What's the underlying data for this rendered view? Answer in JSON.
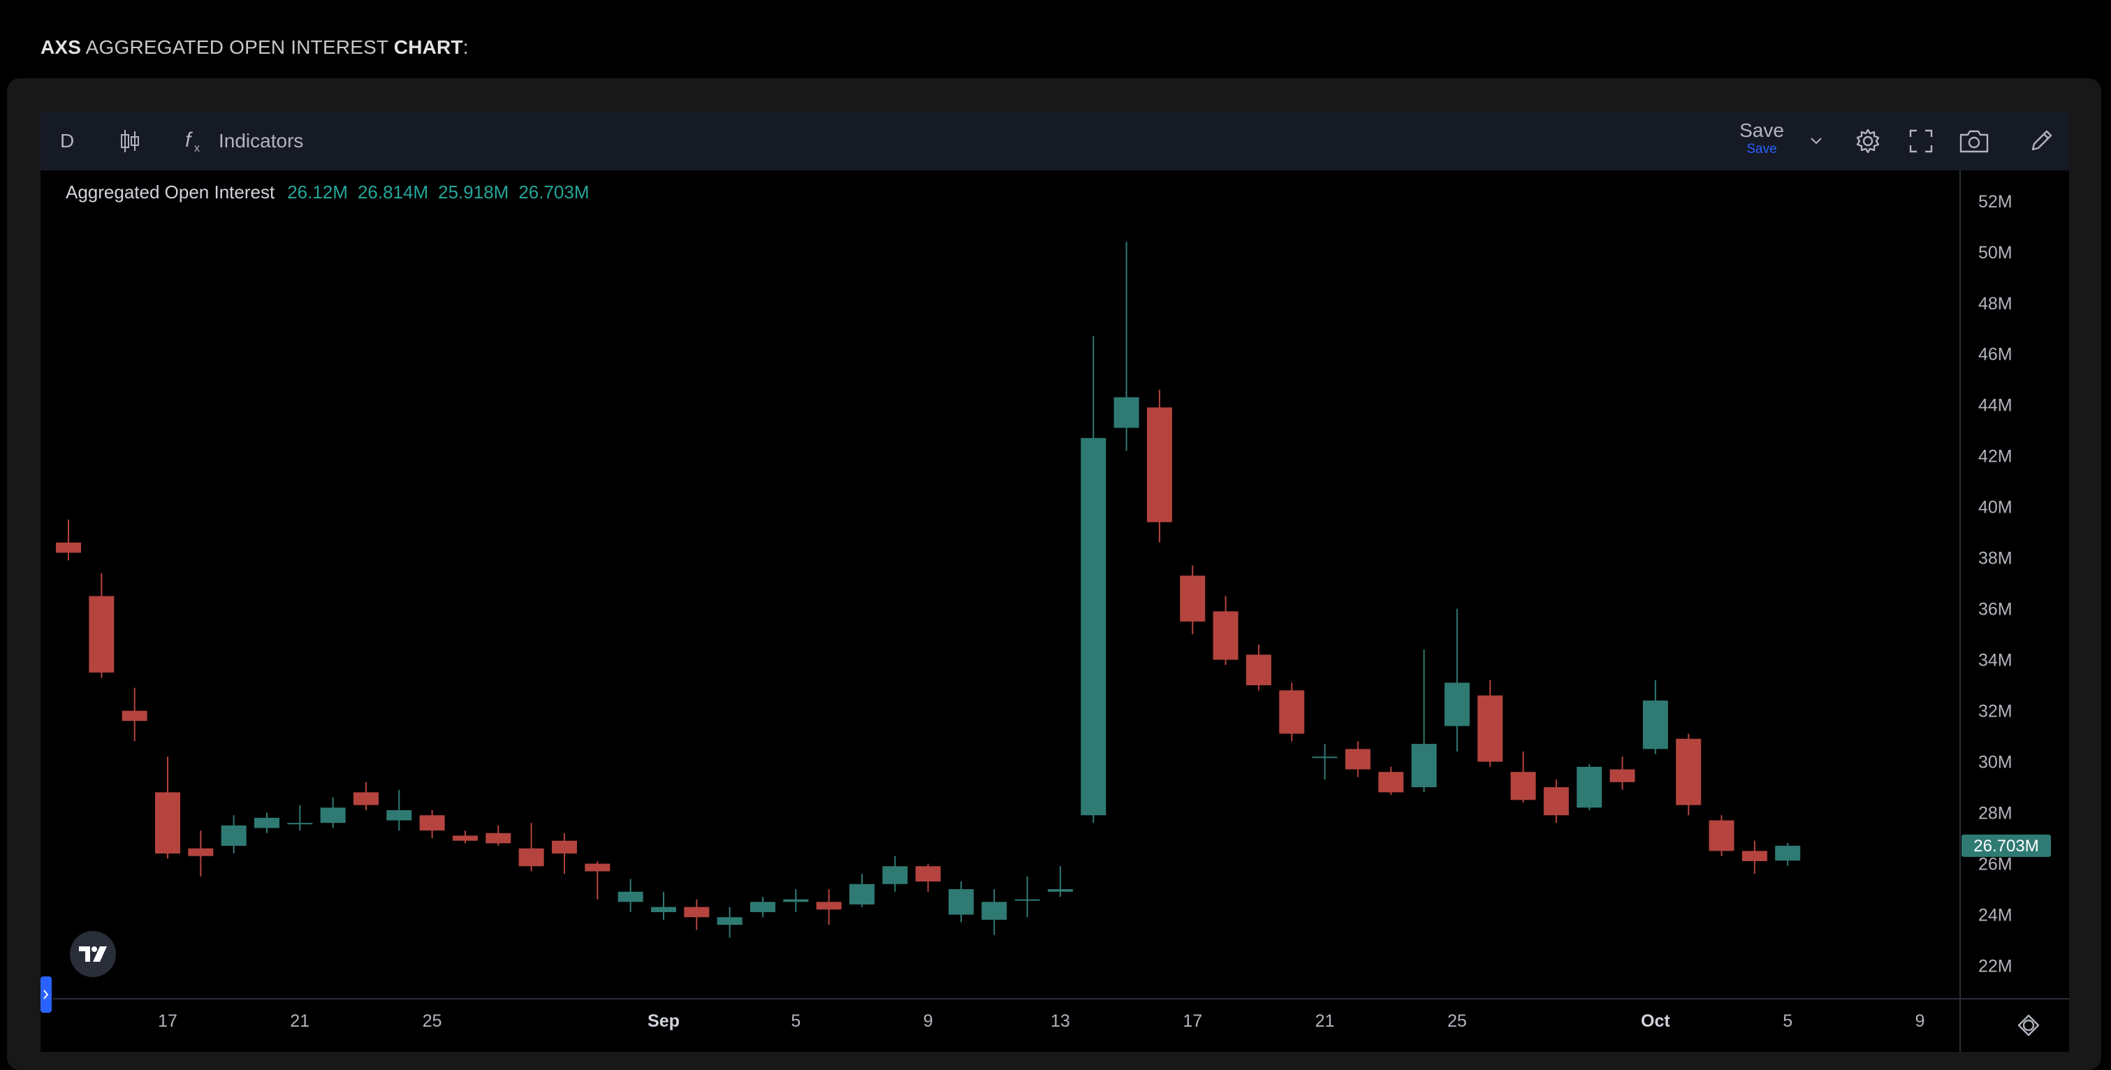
{
  "page_title": {
    "ticker": "AXS",
    "middle": " AGGREGATED OPEN INTEREST ",
    "chart_word": "CHART",
    "suffix": ":"
  },
  "toolbar": {
    "interval": "D",
    "indicators_label": "Indicators",
    "save_label": "Save",
    "save_sub_label": "Save",
    "icons": [
      "candles-icon",
      "function-icon",
      "chevron-down-icon",
      "gear-icon",
      "fullscreen-icon",
      "camera-icon",
      "draw-icon"
    ]
  },
  "legend": {
    "label": "Aggregated Open Interest",
    "open": "26.12M",
    "high": "26.814M",
    "low": "25.918M",
    "close": "26.703M"
  },
  "colors": {
    "up": "#26a69a",
    "up_body": "#2f7b74",
    "down": "#b5443f",
    "background": "#000000",
    "toolbar": "#161a25",
    "axis_text": "#b2b5be"
  },
  "chart_data": {
    "type": "candlestick",
    "title": "Aggregated Open Interest",
    "unit": "M",
    "ylim": [
      20.7,
      53.2
    ],
    "y_ticks": [
      "52M",
      "50M",
      "48M",
      "46M",
      "44M",
      "42M",
      "40M",
      "38M",
      "36M",
      "34M",
      "32M",
      "30M",
      "28M",
      "26M",
      "24M",
      "22M"
    ],
    "y_tick_values": [
      52,
      50,
      48,
      46,
      44,
      42,
      40,
      38,
      36,
      34,
      32,
      30,
      28,
      26,
      24,
      22
    ],
    "x_tick_labels": [
      "17",
      "21",
      "25",
      "Sep",
      "5",
      "9",
      "13",
      "17",
      "21",
      "25",
      "Oct",
      "5",
      "9"
    ],
    "x_tick_dates": [
      "Aug 17",
      "Aug 21",
      "Aug 25",
      "Sep 1",
      "Sep 5",
      "Sep 9",
      "Sep 13",
      "Sep 17",
      "Sep 21",
      "Sep 25",
      "Oct 1",
      "Oct 5",
      "Oct 9"
    ],
    "last_value_label": "26.703M",
    "last_value": 26.703,
    "candles": [
      {
        "date": "Aug 14",
        "o": 38.6,
        "h": 39.5,
        "l": 37.9,
        "c": 38.2
      },
      {
        "date": "Aug 15",
        "o": 36.5,
        "h": 37.4,
        "l": 33.3,
        "c": 33.5
      },
      {
        "date": "Aug 16",
        "o": 32.0,
        "h": 32.9,
        "l": 30.8,
        "c": 31.6
      },
      {
        "date": "Aug 17",
        "o": 28.8,
        "h": 30.2,
        "l": 26.2,
        "c": 26.4
      },
      {
        "date": "Aug 18",
        "o": 26.6,
        "h": 27.3,
        "l": 25.5,
        "c": 26.3
      },
      {
        "date": "Aug 19",
        "o": 26.7,
        "h": 27.9,
        "l": 26.4,
        "c": 27.5
      },
      {
        "date": "Aug 20",
        "o": 27.4,
        "h": 28.0,
        "l": 27.2,
        "c": 27.8
      },
      {
        "date": "Aug 21",
        "o": 27.6,
        "h": 28.3,
        "l": 27.3,
        "c": 27.6
      },
      {
        "date": "Aug 22",
        "o": 27.6,
        "h": 28.6,
        "l": 27.4,
        "c": 28.2
      },
      {
        "date": "Aug 23",
        "o": 28.8,
        "h": 29.2,
        "l": 28.1,
        "c": 28.3
      },
      {
        "date": "Aug 24",
        "o": 27.7,
        "h": 28.9,
        "l": 27.3,
        "c": 28.1
      },
      {
        "date": "Aug 25",
        "o": 27.9,
        "h": 28.1,
        "l": 27.0,
        "c": 27.3
      },
      {
        "date": "Aug 26",
        "o": 27.1,
        "h": 27.3,
        "l": 26.8,
        "c": 26.9
      },
      {
        "date": "Aug 27",
        "o": 27.2,
        "h": 27.5,
        "l": 26.7,
        "c": 26.8
      },
      {
        "date": "Aug 28",
        "o": 26.6,
        "h": 27.6,
        "l": 25.7,
        "c": 25.9
      },
      {
        "date": "Aug 29",
        "o": 26.9,
        "h": 27.2,
        "l": 25.6,
        "c": 26.4
      },
      {
        "date": "Aug 30",
        "o": 26.0,
        "h": 26.1,
        "l": 24.6,
        "c": 25.7
      },
      {
        "date": "Aug 31",
        "o": 24.5,
        "h": 25.4,
        "l": 24.1,
        "c": 24.9
      },
      {
        "date": "Sep 1",
        "o": 24.1,
        "h": 24.9,
        "l": 23.8,
        "c": 24.3
      },
      {
        "date": "Sep 2",
        "o": 24.3,
        "h": 24.6,
        "l": 23.4,
        "c": 23.9
      },
      {
        "date": "Sep 3",
        "o": 23.6,
        "h": 24.3,
        "l": 23.1,
        "c": 23.9
      },
      {
        "date": "Sep 4",
        "o": 24.1,
        "h": 24.7,
        "l": 23.9,
        "c": 24.5
      },
      {
        "date": "Sep 5",
        "o": 24.5,
        "h": 25.0,
        "l": 24.1,
        "c": 24.6
      },
      {
        "date": "Sep 6",
        "o": 24.5,
        "h": 25.0,
        "l": 23.6,
        "c": 24.2
      },
      {
        "date": "Sep 7",
        "o": 24.4,
        "h": 25.6,
        "l": 24.3,
        "c": 25.2
      },
      {
        "date": "Sep 8",
        "o": 25.2,
        "h": 26.3,
        "l": 24.9,
        "c": 25.9
      },
      {
        "date": "Sep 9",
        "o": 25.9,
        "h": 26.0,
        "l": 24.9,
        "c": 25.3
      },
      {
        "date": "Sep 10",
        "o": 24.0,
        "h": 25.3,
        "l": 23.7,
        "c": 25.0
      },
      {
        "date": "Sep 11",
        "o": 23.8,
        "h": 25.0,
        "l": 23.2,
        "c": 24.5
      },
      {
        "date": "Sep 12",
        "o": 24.6,
        "h": 25.5,
        "l": 23.9,
        "c": 24.6
      },
      {
        "date": "Sep 13",
        "o": 24.9,
        "h": 25.9,
        "l": 24.7,
        "c": 25.0
      },
      {
        "date": "Sep 14",
        "o": 27.9,
        "h": 46.7,
        "l": 27.6,
        "c": 42.7
      },
      {
        "date": "Sep 15",
        "o": 43.1,
        "h": 50.4,
        "l": 42.2,
        "c": 44.3
      },
      {
        "date": "Sep 16",
        "o": 43.9,
        "h": 44.6,
        "l": 38.6,
        "c": 39.4
      },
      {
        "date": "Sep 17",
        "o": 37.3,
        "h": 37.7,
        "l": 35.0,
        "c": 35.5
      },
      {
        "date": "Sep 18",
        "o": 35.9,
        "h": 36.5,
        "l": 33.8,
        "c": 34.0
      },
      {
        "date": "Sep 19",
        "o": 34.2,
        "h": 34.6,
        "l": 32.8,
        "c": 33.0
      },
      {
        "date": "Sep 20",
        "o": 32.8,
        "h": 33.1,
        "l": 30.8,
        "c": 31.1
      },
      {
        "date": "Sep 21",
        "o": 30.2,
        "h": 30.7,
        "l": 29.3,
        "c": 30.2
      },
      {
        "date": "Sep 22",
        "o": 30.5,
        "h": 30.8,
        "l": 29.4,
        "c": 29.7
      },
      {
        "date": "Sep 23",
        "o": 29.6,
        "h": 29.8,
        "l": 28.7,
        "c": 28.8
      },
      {
        "date": "Sep 24",
        "o": 29.0,
        "h": 34.4,
        "l": 28.8,
        "c": 30.7
      },
      {
        "date": "Sep 25",
        "o": 31.4,
        "h": 36.0,
        "l": 30.4,
        "c": 33.1
      },
      {
        "date": "Sep 26",
        "o": 32.6,
        "h": 33.2,
        "l": 29.8,
        "c": 30.0
      },
      {
        "date": "Sep 27",
        "o": 29.6,
        "h": 30.4,
        "l": 28.4,
        "c": 28.5
      },
      {
        "date": "Sep 28",
        "o": 29.0,
        "h": 29.3,
        "l": 27.6,
        "c": 27.9
      },
      {
        "date": "Sep 29",
        "o": 28.2,
        "h": 29.9,
        "l": 28.1,
        "c": 29.8
      },
      {
        "date": "Sep 30",
        "o": 29.7,
        "h": 30.2,
        "l": 28.9,
        "c": 29.2
      },
      {
        "date": "Oct 1",
        "o": 30.5,
        "h": 33.2,
        "l": 30.3,
        "c": 32.4
      },
      {
        "date": "Oct 2",
        "o": 30.9,
        "h": 31.1,
        "l": 27.9,
        "c": 28.3
      },
      {
        "date": "Oct 3",
        "o": 27.7,
        "h": 27.9,
        "l": 26.3,
        "c": 26.5
      },
      {
        "date": "Oct 4",
        "o": 26.5,
        "h": 26.9,
        "l": 25.6,
        "c": 26.1
      },
      {
        "date": "Oct 5",
        "o": 26.12,
        "h": 26.814,
        "l": 25.918,
        "c": 26.703
      }
    ]
  }
}
